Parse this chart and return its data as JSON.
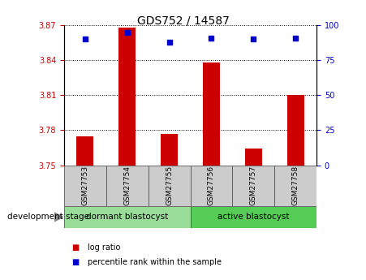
{
  "title": "GDS752 / 14587",
  "samples": [
    "GSM27753",
    "GSM27754",
    "GSM27755",
    "GSM27756",
    "GSM27757",
    "GSM27758"
  ],
  "log_ratio": [
    3.775,
    3.868,
    3.777,
    3.838,
    3.764,
    3.81
  ],
  "percentile_rank": [
    90,
    95,
    88,
    91,
    90,
    91
  ],
  "ylim_left": [
    3.75,
    3.87
  ],
  "ylim_right": [
    0,
    100
  ],
  "yticks_left": [
    3.75,
    3.78,
    3.81,
    3.84,
    3.87
  ],
  "yticks_right": [
    0,
    25,
    50,
    75,
    100
  ],
  "bar_color": "#cc0000",
  "dot_color": "#0000cc",
  "group1_label": "dormant blastocyst",
  "group2_label": "active blastocyst",
  "group1_indices": [
    0,
    1,
    2
  ],
  "group2_indices": [
    3,
    4,
    5
  ],
  "group1_color": "#99dd99",
  "group2_color": "#55cc55",
  "stage_label": "development stage",
  "legend_bar": "log ratio",
  "legend_dot": "percentile rank within the sample",
  "tick_color_left": "#cc0000",
  "tick_color_right": "#0000cc",
  "grid_color": "#000000",
  "bg_plot": "#ffffff",
  "bg_xtick": "#cccccc",
  "bar_width": 0.4
}
